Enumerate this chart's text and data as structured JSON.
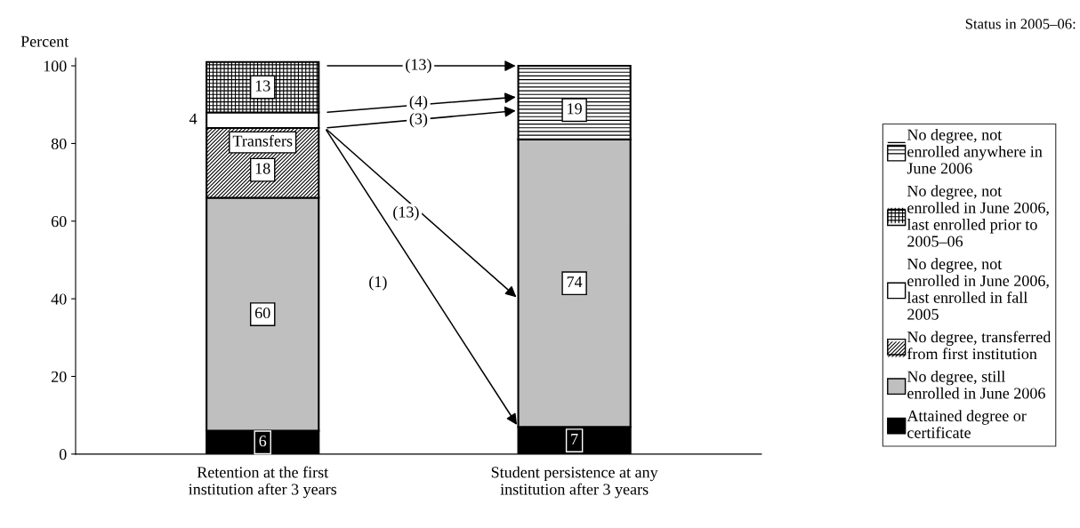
{
  "chart_data": {
    "type": "bar",
    "stacked": true,
    "ylabel": "Percent",
    "legend_title": "Status in 2005–06:",
    "legend": "right",
    "categories": [
      "Retention at the first\ninstitution after 3 years",
      "Student persistence at any\ninstitution after 3 years"
    ],
    "ylim": [
      0,
      102
    ],
    "yticks": [
      0,
      20,
      40,
      60,
      80,
      100
    ],
    "grid": false,
    "series": [
      {
        "name": "Attained degree or certificate",
        "color": "#000000",
        "values": [
          6,
          7
        ],
        "value_labels": [
          "6",
          "7"
        ]
      },
      {
        "name": "No degree, still enrolled in June 2006",
        "color": "#bfbfbf",
        "values": [
          60,
          74
        ],
        "value_labels": [
          "60",
          "74"
        ]
      },
      {
        "name": "No degree, transferred from first institution",
        "color": "#ffffff",
        "values": [
          18,
          null
        ],
        "value_labels": [
          "18",
          null
        ]
      },
      {
        "name": "No degree, not enrolled in June 2006, last enrolled in fall 2005",
        "color": "#ffffff",
        "values": [
          4,
          null
        ],
        "value_labels": [
          "4",
          null
        ]
      },
      {
        "name": "No degree, not enrolled in June 2006, last enrolled prior to 2005–06",
        "color": "#ffffff",
        "values": [
          13,
          null
        ],
        "value_labels": [
          "13",
          null
        ]
      },
      {
        "name": "No degree, not enrolled anywhere in June 2006",
        "color": "#ffffff",
        "values": [
          null,
          19
        ],
        "value_labels": [
          null,
          "19"
        ]
      }
    ],
    "annotations": [
      "Transfers",
      "(13)",
      "(4)",
      "(3)",
      "(13)",
      "(1)"
    ]
  }
}
